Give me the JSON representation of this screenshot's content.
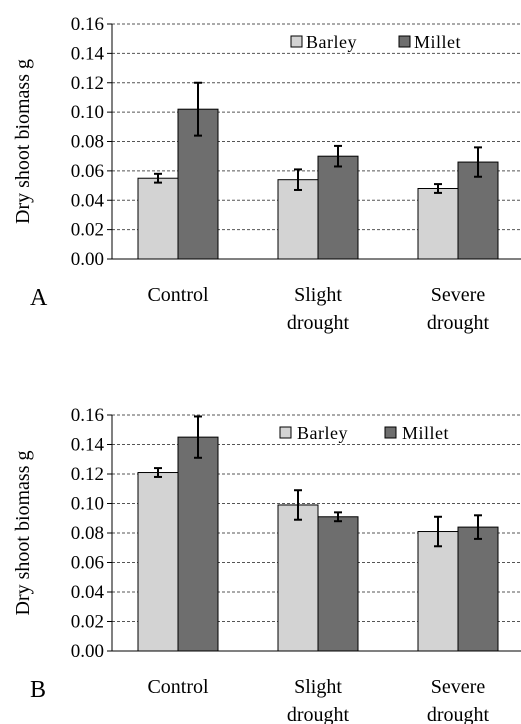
{
  "chart_data": [
    {
      "type": "bar",
      "panel_label": "A",
      "categories": [
        [
          "Control"
        ],
        [
          "Slight",
          "drought"
        ],
        [
          "Severe",
          "drought"
        ]
      ],
      "series": [
        {
          "name": "Barley",
          "values": [
            0.055,
            0.054,
            0.048
          ],
          "errors": [
            0.003,
            0.007,
            0.003
          ],
          "color": "#d3d3d3"
        },
        {
          "name": "Millet",
          "values": [
            0.102,
            0.07,
            0.066
          ],
          "errors": [
            0.018,
            0.007,
            0.01
          ],
          "color": "#6e6e6e"
        }
      ],
      "ylabel": "Dry shoot biomass g",
      "ylim": [
        0,
        0.16
      ],
      "yticks": [
        "0.00",
        "0.02",
        "0.04",
        "0.06",
        "0.08",
        "0.10",
        "0.12",
        "0.14",
        "0.16"
      ],
      "grid": true,
      "legend_position": "top-right"
    },
    {
      "type": "bar",
      "panel_label": "B",
      "categories": [
        [
          "Control"
        ],
        [
          "Slight",
          "drought"
        ],
        [
          "Severe",
          "drought"
        ]
      ],
      "series": [
        {
          "name": "Barley",
          "values": [
            0.121,
            0.099,
            0.081
          ],
          "errors": [
            0.003,
            0.01,
            0.01
          ],
          "color": "#d3d3d3"
        },
        {
          "name": "Millet",
          "values": [
            0.145,
            0.091,
            0.084
          ],
          "errors": [
            0.014,
            0.003,
            0.008
          ],
          "color": "#6e6e6e"
        }
      ],
      "ylabel": "Dry shoot biomass g",
      "ylim": [
        0,
        0.16
      ],
      "yticks": [
        "0.00",
        "0.02",
        "0.04",
        "0.06",
        "0.08",
        "0.10",
        "0.12",
        "0.14",
        "0.16"
      ],
      "grid": true,
      "legend_position": "top-right"
    }
  ]
}
